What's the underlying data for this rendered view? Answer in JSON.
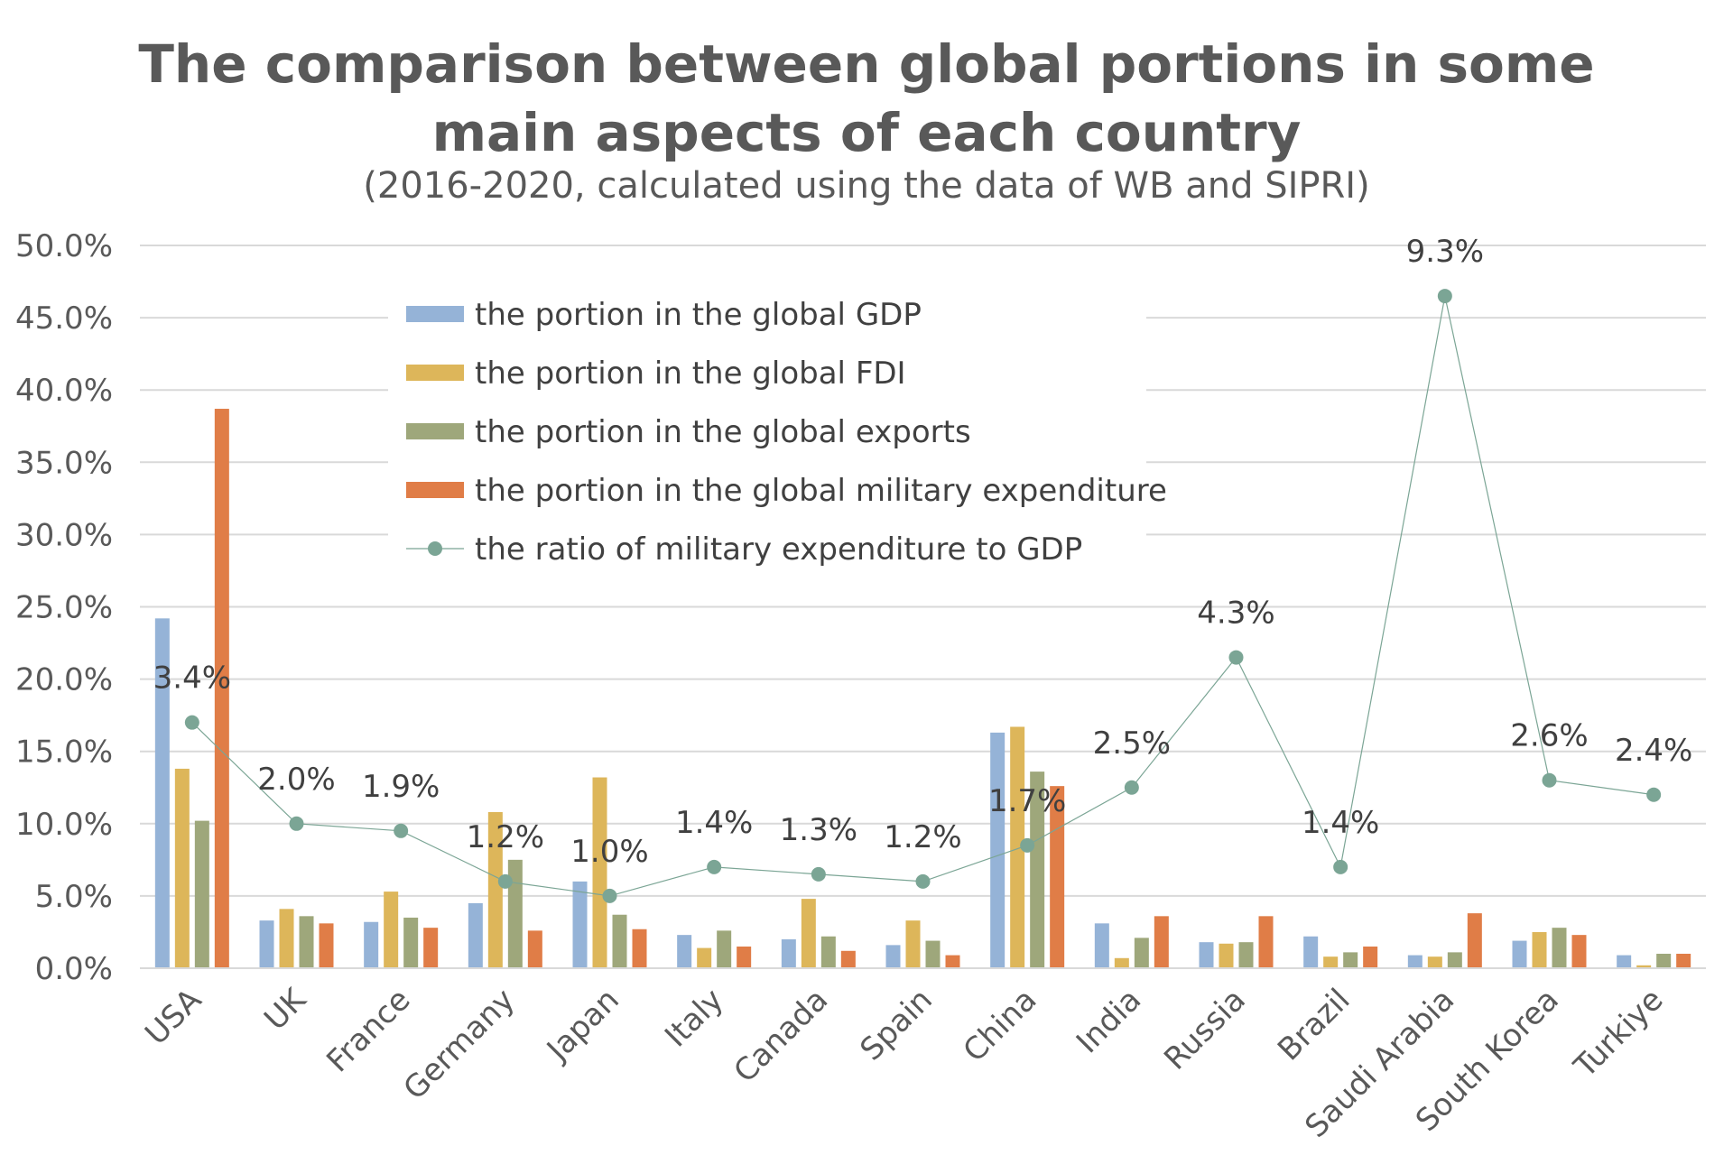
{
  "chart_data": {
    "type": "bar",
    "title_line1": "The comparison between global portions in some",
    "title_line2": "main aspects of each country",
    "subtitle": "(2016-2020, calculated using the data of WB and SIPRI)",
    "categories": [
      "USA",
      "UK",
      "France",
      "Germany",
      "Japan",
      "Italy",
      "Canada",
      "Spain",
      "China",
      "India",
      "Russia",
      "Brazil",
      "Saudi Arabia",
      "South Korea",
      "Turkiye"
    ],
    "ylim": [
      0,
      50
    ],
    "yticks": [
      "0.0%",
      "5.0%",
      "10.0%",
      "15.0%",
      "20.0%",
      "25.0%",
      "30.0%",
      "35.0%",
      "40.0%",
      "45.0%",
      "50.0%"
    ],
    "grid": true,
    "legend_position": "top-left inside plot",
    "series": [
      {
        "name": "the portion in the global GDP",
        "kind": "bar",
        "color": "#95B3D7",
        "values": [
          24.2,
          3.3,
          3.2,
          4.5,
          6.0,
          2.3,
          2.0,
          1.6,
          16.3,
          3.1,
          1.8,
          2.2,
          0.9,
          1.9,
          0.9
        ]
      },
      {
        "name": "the portion in the global FDI",
        "kind": "bar",
        "color": "#DDB65A",
        "values": [
          13.8,
          4.1,
          5.3,
          10.8,
          13.2,
          1.4,
          4.8,
          3.3,
          16.7,
          0.7,
          1.7,
          0.8,
          0.8,
          2.5,
          0.2
        ]
      },
      {
        "name": "the portion in the global exports",
        "kind": "bar",
        "color": "#9EA77B",
        "values": [
          10.2,
          3.6,
          3.5,
          7.5,
          3.7,
          2.6,
          2.2,
          1.9,
          13.6,
          2.1,
          1.8,
          1.1,
          1.1,
          2.8,
          1.0
        ]
      },
      {
        "name": "the portion in the global military expenditure",
        "kind": "bar",
        "color": "#E07D47",
        "values": [
          38.7,
          3.1,
          2.8,
          2.6,
          2.7,
          1.5,
          1.2,
          0.9,
          12.6,
          3.6,
          3.6,
          1.5,
          3.8,
          2.3,
          1.0
        ]
      },
      {
        "name": "the ratio of military expenditure to GDP",
        "kind": "line",
        "color": "#7BA595",
        "values": [
          3.4,
          2.0,
          1.9,
          1.2,
          1.0,
          1.4,
          1.3,
          1.2,
          1.7,
          2.5,
          4.3,
          1.4,
          9.3,
          2.6,
          2.4
        ],
        "labels": [
          "3.4%",
          "2.0%",
          "1.9%",
          "1.2%",
          "1.0%",
          "1.4%",
          "1.3%",
          "1.2%",
          "1.7%",
          "2.5%",
          "4.3%",
          "1.4%",
          "9.3%",
          "2.6%",
          "2.4%"
        ],
        "plotted_as_percent_times": 5
      }
    ]
  }
}
